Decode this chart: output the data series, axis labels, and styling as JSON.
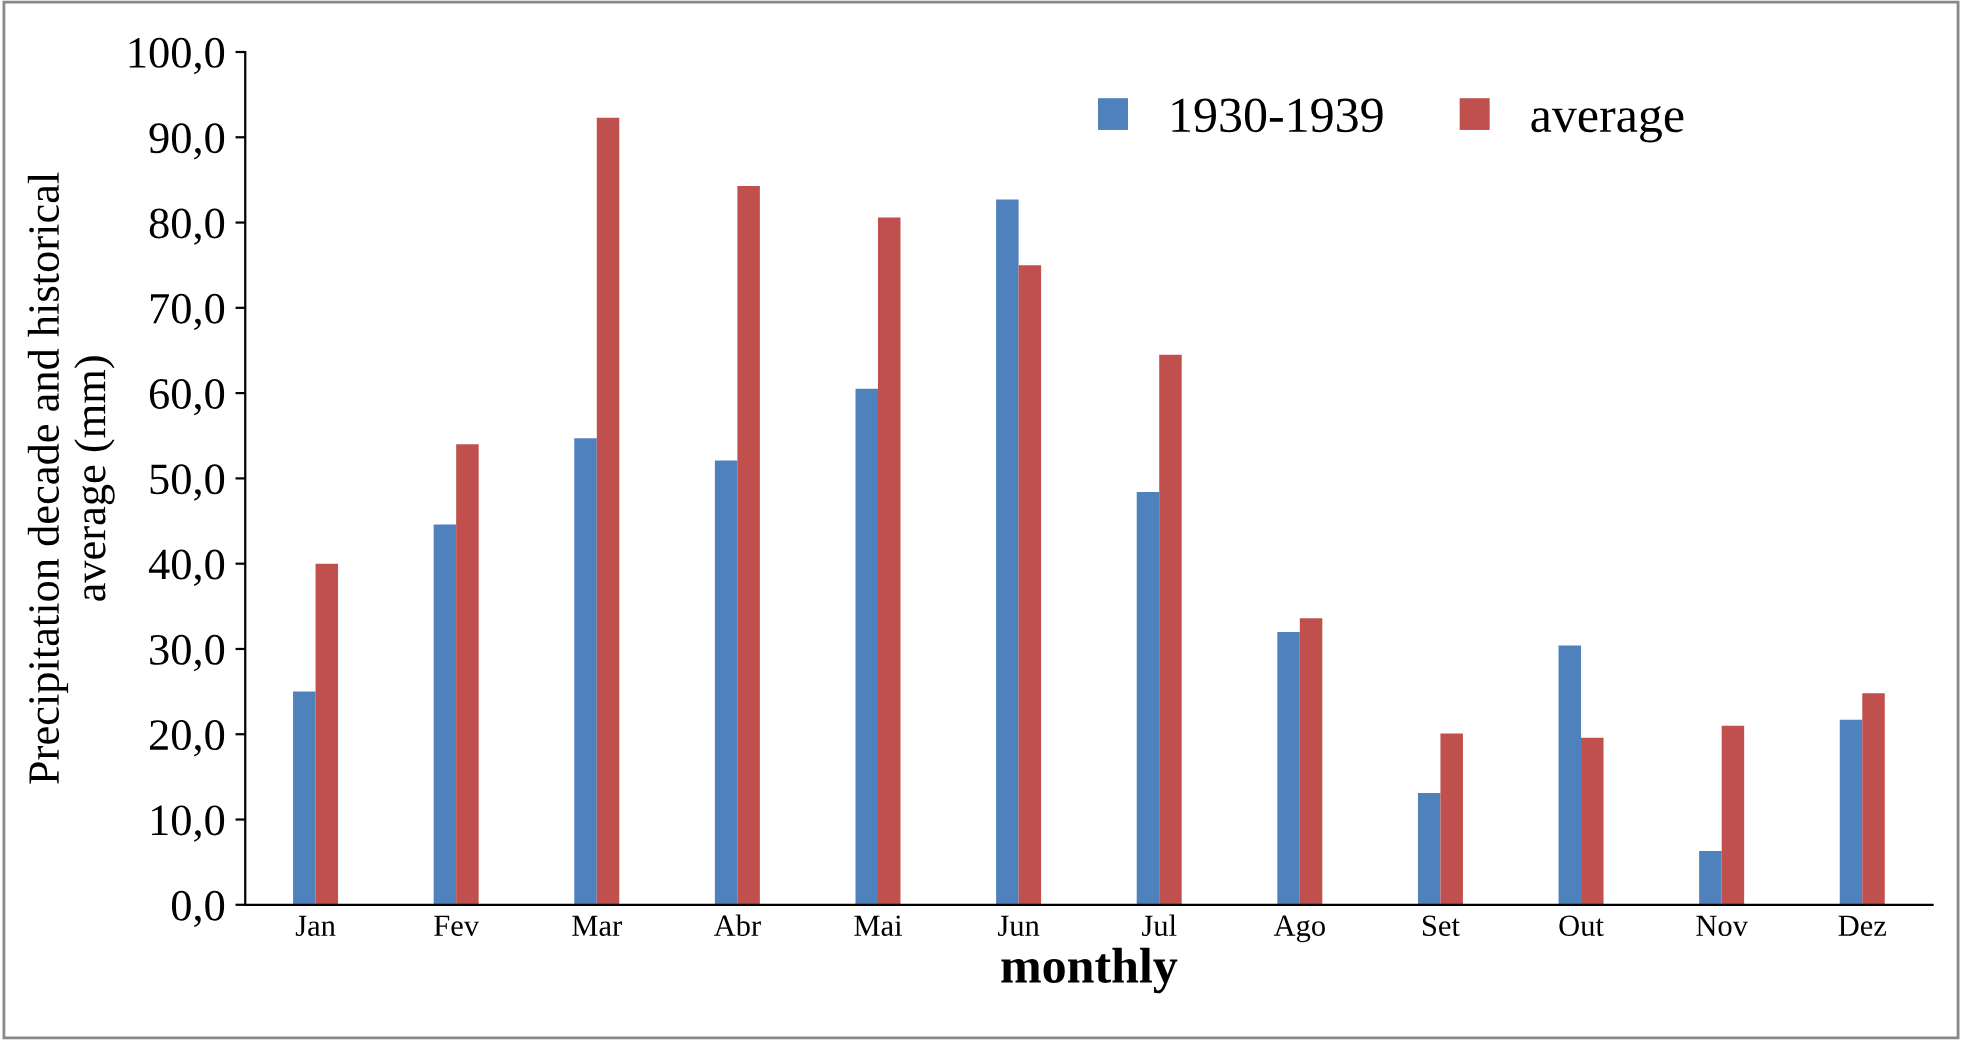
{
  "chart_data": {
    "type": "bar",
    "xlabel": "monthly",
    "ylabel": "Precipitation decade and historical\naverage (mm)",
    "categories": [
      "Jan",
      "Fev",
      "Mar",
      "Abr",
      "Mai",
      "Jun",
      "Jul",
      "Ago",
      "Set",
      "Out",
      "Nov",
      "Dez"
    ],
    "series": [
      {
        "name": "1930-1939",
        "color": "#4f81bd",
        "values": [
          25.0,
          44.6,
          54.7,
          52.1,
          60.5,
          82.7,
          48.4,
          32.0,
          13.1,
          30.4,
          6.3,
          21.7
        ]
      },
      {
        "name": "average",
        "color": "#c0504d",
        "values": [
          40.0,
          54.0,
          92.3,
          84.3,
          80.6,
          75.0,
          64.5,
          33.6,
          20.1,
          19.6,
          21.0,
          24.8
        ]
      }
    ],
    "ylim": [
      0,
      100
    ],
    "yticks": [
      {
        "value": 0,
        "label": "0,0"
      },
      {
        "value": 10,
        "label": "10,0"
      },
      {
        "value": 20,
        "label": "20,0"
      },
      {
        "value": 30,
        "label": "30,0"
      },
      {
        "value": 40,
        "label": "40,0"
      },
      {
        "value": 50,
        "label": "50,0"
      },
      {
        "value": 60,
        "label": "60,0"
      },
      {
        "value": 70,
        "label": "70,0"
      },
      {
        "value": 80,
        "label": "80,0"
      },
      {
        "value": 90,
        "label": "90,0"
      },
      {
        "value": 100,
        "label": "100,0"
      }
    ],
    "grid": false,
    "legend": "top right"
  }
}
